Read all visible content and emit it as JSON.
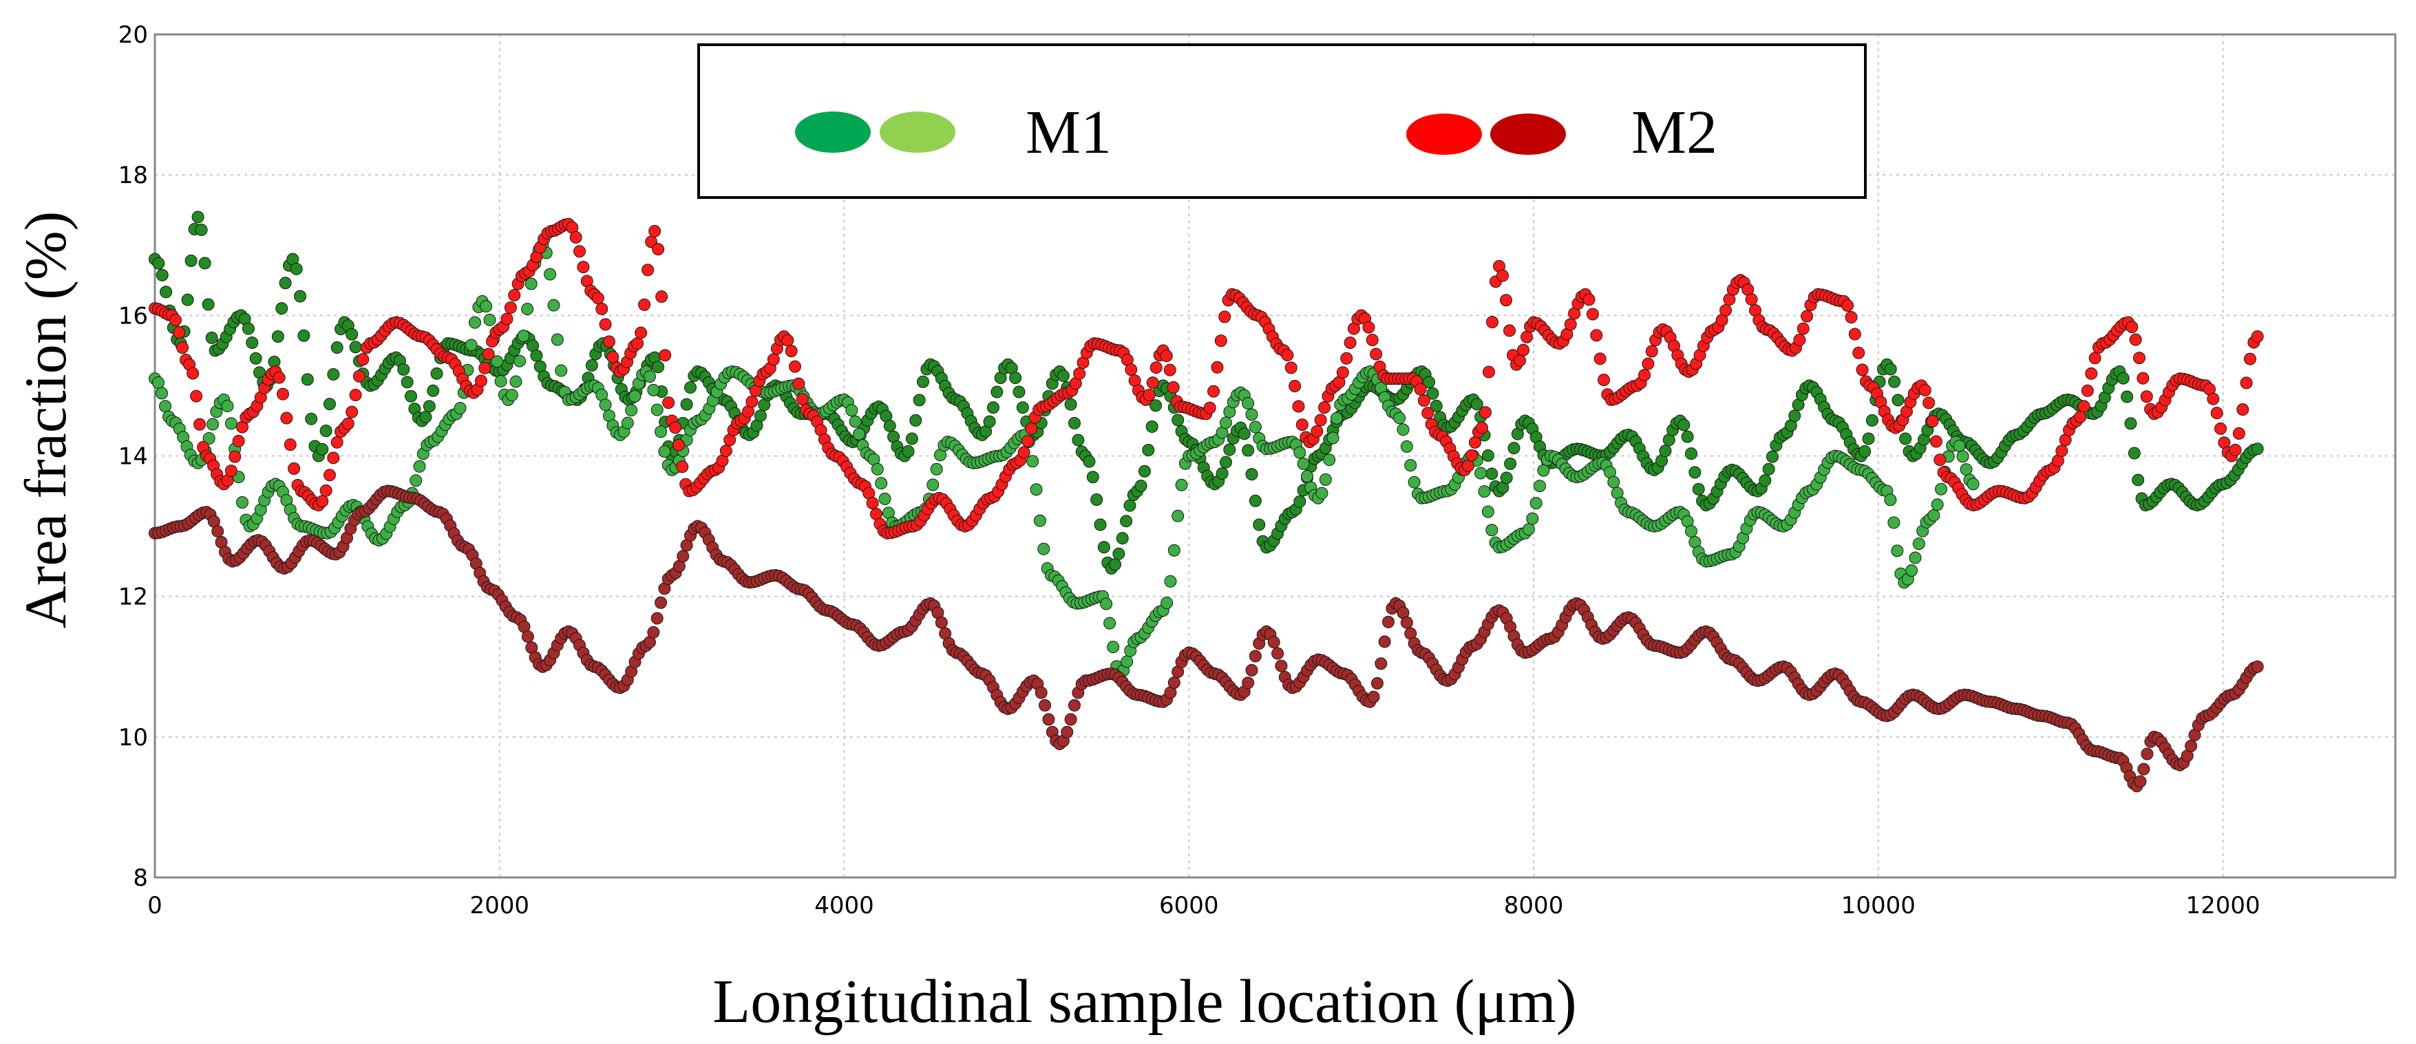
{
  "chart_data": {
    "type": "scatter",
    "title": "",
    "xlabel": "Longitudinal sample location (μm)",
    "ylabel": "Area fraction (%)",
    "xlim": [
      0,
      13000
    ],
    "ylim": [
      8,
      20
    ],
    "xticks": [
      "0",
      "2000",
      "4000",
      "6000",
      "8000",
      "10000",
      "12000"
    ],
    "yticks": [
      "8",
      "10",
      "12",
      "14",
      "16",
      "18",
      "20"
    ],
    "grid": true,
    "legend": {
      "placement": "top-center",
      "groups": [
        {
          "label": "M1",
          "swatches": [
            "#00a651",
            "#92d050"
          ]
        },
        {
          "label": "M2",
          "swatches": [
            "#ff0000",
            "#c00000"
          ]
        }
      ]
    },
    "series": [
      {
        "name": "M1 (dark green)",
        "color": "#228b22",
        "x": [
          0,
          150,
          250,
          350,
          500,
          650,
          800,
          950,
          1100,
          1250,
          1400,
          1550,
          1700,
          1850,
          2000,
          2150,
          2300,
          2450,
          2600,
          2750,
          2900,
          3000,
          3150,
          3300,
          3450,
          3600,
          3750,
          3900,
          4050,
          4200,
          4350,
          4500,
          4650,
          4800,
          4950,
          5100,
          5250,
          5400,
          5550,
          5700,
          5850,
          6000,
          6150,
          6300,
          6450,
          6600,
          6750,
          6900,
          7050,
          7200,
          7350,
          7500,
          7650,
          7800,
          7950,
          8100,
          8250,
          8400,
          8550,
          8700,
          8850,
          9000,
          9150,
          9300,
          9450,
          9600,
          9750,
          9900,
          10050,
          10200,
          10350,
          10500,
          10650,
          10800,
          10950,
          11100,
          11250,
          11400,
          11550,
          11700,
          11850,
          12000,
          12200
        ],
        "y": [
          16.8,
          15.6,
          17.4,
          15.5,
          16.0,
          15.0,
          16.8,
          14.0,
          15.9,
          15.0,
          15.4,
          14.5,
          15.6,
          15.5,
          15.2,
          15.7,
          15.0,
          14.8,
          15.6,
          14.8,
          15.4,
          14.0,
          15.2,
          14.8,
          14.3,
          15.0,
          14.6,
          14.6,
          14.2,
          14.7,
          14.0,
          15.3,
          14.8,
          14.3,
          15.3,
          14.3,
          15.2,
          14.0,
          12.4,
          13.5,
          15.0,
          14.2,
          13.6,
          14.4,
          12.7,
          13.2,
          14.0,
          14.6,
          15.0,
          14.8,
          15.2,
          14.4,
          14.8,
          13.5,
          14.5,
          13.9,
          14.1,
          14.0,
          14.3,
          13.8,
          14.5,
          13.3,
          13.8,
          13.5,
          14.3,
          15.0,
          14.5,
          14.0,
          15.3,
          14.0,
          14.6,
          14.2,
          13.9,
          14.3,
          14.6,
          14.8,
          14.6,
          15.2,
          13.3,
          13.6,
          13.3,
          13.6,
          14.1
        ]
      },
      {
        "name": "M1 (light green)",
        "color": "#3cb043",
        "x": [
          0,
          100,
          250,
          400,
          550,
          700,
          850,
          1000,
          1150,
          1300,
          1450,
          1600,
          1750,
          1900,
          2050,
          2250,
          2400,
          2550,
          2700,
          2850,
          3000,
          3150,
          3350,
          3550,
          3700,
          3850,
          4000,
          4150,
          4300,
          4450,
          4600,
          4750,
          4900,
          5050,
          5200,
          5350,
          5500,
          5600,
          5700,
          5850,
          6000,
          6150,
          6300,
          6450,
          6600,
          6750,
          6900,
          7050,
          7200,
          7350,
          7500,
          7650,
          7800,
          7950,
          8100,
          8250,
          8400,
          8550,
          8700,
          8850,
          9000,
          9150,
          9300,
          9450,
          9600,
          9750,
          9900,
          10050,
          10150,
          10300,
          10450,
          10550
        ],
        "y": [
          15.1,
          14.5,
          13.9,
          14.8,
          13.0,
          13.6,
          13.0,
          12.9,
          13.3,
          12.8,
          13.3,
          14.2,
          14.6,
          16.2,
          14.8,
          17.0,
          14.8,
          15.0,
          14.3,
          15.2,
          13.8,
          14.5,
          15.2,
          14.9,
          15.0,
          14.6,
          14.8,
          14.0,
          13.0,
          13.2,
          14.2,
          13.9,
          14.0,
          14.3,
          12.3,
          11.9,
          12.0,
          10.9,
          11.4,
          11.8,
          14.0,
          14.2,
          14.9,
          14.1,
          14.2,
          13.4,
          14.8,
          15.2,
          14.6,
          13.4,
          13.5,
          14.0,
          12.7,
          12.9,
          14.0,
          13.7,
          13.9,
          13.2,
          13.0,
          13.2,
          12.5,
          12.6,
          13.2,
          13.0,
          13.5,
          14.0,
          13.8,
          13.5,
          12.2,
          13.1,
          14.2,
          13.6
        ]
      },
      {
        "name": "M2 (red)",
        "color": "#ff1a1a",
        "x": [
          0,
          100,
          200,
          300,
          400,
          550,
          700,
          850,
          950,
          1100,
          1250,
          1400,
          1550,
          1700,
          1850,
          2000,
          2150,
          2300,
          2400,
          2550,
          2700,
          2800,
          2900,
          3000,
          3100,
          3250,
          3400,
          3550,
          3650,
          3800,
          3950,
          4100,
          4250,
          4400,
          4550,
          4700,
          4850,
          5000,
          5150,
          5300,
          5450,
          5600,
          5750,
          5850,
          5950,
          6100,
          6250,
          6400,
          6550,
          6700,
          6850,
          7000,
          7150,
          7300,
          7450,
          7600,
          7700,
          7800,
          7900,
          8000,
          8150,
          8300,
          8450,
          8600,
          8750,
          8900,
          9050,
          9200,
          9350,
          9500,
          9650,
          9800,
          9950,
          10100,
          10250,
          10400,
          10550,
          10700,
          10850,
          11000,
          11150,
          11300,
          11450,
          11600,
          11750,
          11900,
          12050,
          12200
        ],
        "y": [
          16.1,
          16.0,
          15.3,
          14.0,
          13.6,
          14.6,
          15.2,
          13.5,
          13.3,
          14.4,
          15.6,
          15.9,
          15.7,
          15.4,
          14.9,
          15.8,
          16.6,
          17.2,
          17.3,
          16.3,
          15.2,
          15.6,
          17.2,
          14.5,
          13.5,
          13.8,
          14.5,
          15.2,
          15.7,
          14.6,
          14.0,
          13.6,
          12.9,
          13.0,
          13.4,
          13.0,
          13.4,
          13.9,
          14.7,
          14.9,
          15.6,
          15.5,
          14.8,
          15.5,
          14.7,
          14.6,
          16.3,
          16.0,
          15.5,
          14.2,
          15.0,
          16.0,
          15.1,
          15.1,
          14.3,
          13.8,
          14.4,
          16.7,
          15.3,
          15.9,
          15.6,
          16.3,
          14.8,
          15.0,
          15.8,
          15.2,
          15.8,
          16.5,
          15.8,
          15.5,
          16.3,
          16.2,
          15.0,
          14.4,
          15.0,
          13.7,
          13.3,
          13.5,
          13.4,
          13.8,
          14.5,
          15.6,
          15.9,
          14.6,
          15.1,
          15.0,
          14.0,
          15.7
        ]
      },
      {
        "name": "M2 (dark red)",
        "color": "#a52a2a",
        "x": [
          0,
          150,
          300,
          450,
          600,
          750,
          900,
          1050,
          1200,
          1350,
          1500,
          1650,
          1800,
          1950,
          2100,
          2250,
          2400,
          2550,
          2700,
          2850,
          3000,
          3150,
          3300,
          3450,
          3600,
          3750,
          3900,
          4050,
          4200,
          4350,
          4500,
          4650,
          4800,
          4950,
          5100,
          5250,
          5400,
          5550,
          5700,
          5850,
          6000,
          6150,
          6300,
          6450,
          6600,
          6750,
          6900,
          7050,
          7200,
          7350,
          7500,
          7650,
          7800,
          7950,
          8100,
          8250,
          8400,
          8550,
          8700,
          8850,
          9000,
          9150,
          9300,
          9450,
          9600,
          9750,
          9900,
          10050,
          10200,
          10350,
          10500,
          10650,
          10800,
          10950,
          11100,
          11250,
          11400,
          11500,
          11600,
          11750,
          11900,
          12050,
          12200
        ],
        "y": [
          12.9,
          13.0,
          13.2,
          12.5,
          12.8,
          12.4,
          12.8,
          12.6,
          13.2,
          13.5,
          13.4,
          13.2,
          12.7,
          12.1,
          11.7,
          11.0,
          11.5,
          11.0,
          10.7,
          11.3,
          12.3,
          13.0,
          12.5,
          12.2,
          12.3,
          12.1,
          11.8,
          11.6,
          11.3,
          11.5,
          11.9,
          11.2,
          10.9,
          10.4,
          10.8,
          9.9,
          10.8,
          10.9,
          10.6,
          10.5,
          11.2,
          10.9,
          10.6,
          11.5,
          10.7,
          11.1,
          10.9,
          10.5,
          11.9,
          11.2,
          10.8,
          11.3,
          11.8,
          11.2,
          11.4,
          11.9,
          11.4,
          11.7,
          11.3,
          11.2,
          11.5,
          11.1,
          10.8,
          11.0,
          10.6,
          10.9,
          10.5,
          10.3,
          10.6,
          10.4,
          10.6,
          10.5,
          10.4,
          10.3,
          10.2,
          9.8,
          9.7,
          9.3,
          10.0,
          9.6,
          10.3,
          10.6,
          11.0
        ]
      }
    ]
  }
}
